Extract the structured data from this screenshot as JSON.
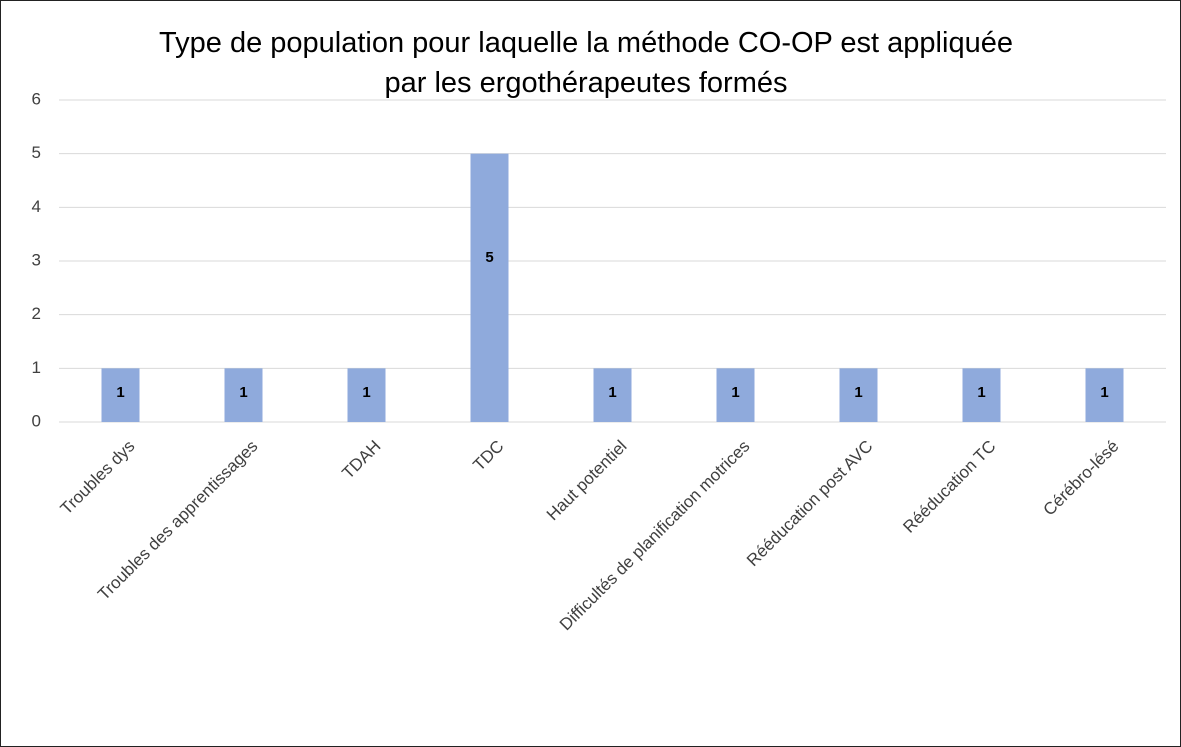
{
  "chart_data": {
    "type": "bar",
    "title": "Type de population pour laquelle la méthode CO-OP est appliquée par les ergothérapeutes formés",
    "categories": [
      "Troubles dys",
      "Troubles des apprentissages",
      "TDAH",
      "TDC",
      "Haut potentiel",
      "Difficultés de planification  motrices",
      "Rééducation  post AVC",
      "Rééducation TC",
      "Cérébro-lésé"
    ],
    "values": [
      1,
      1,
      1,
      5,
      1,
      1,
      1,
      1,
      1
    ],
    "color": "#8faadc",
    "ylim": [
      0,
      6
    ],
    "yticks": [
      0,
      1,
      2,
      3,
      4,
      5,
      6
    ],
    "grid": true
  }
}
